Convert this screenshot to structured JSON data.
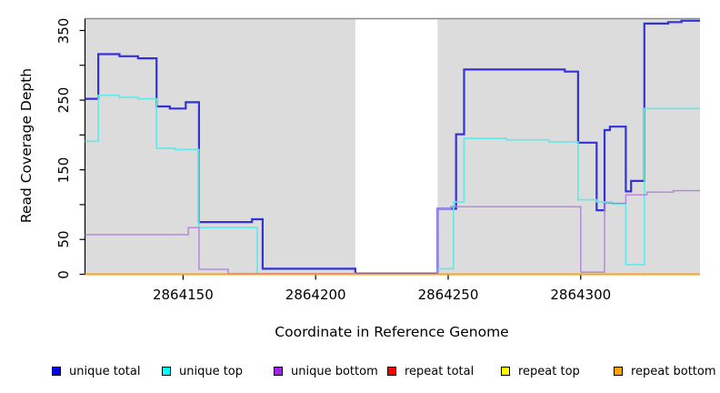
{
  "chart_data": {
    "type": "line",
    "title": "",
    "xlabel": "Coordinate in Reference Genome",
    "ylabel": "Read Coverage Depth",
    "xlim": [
      2864113,
      2864345
    ],
    "ylim": [
      0,
      367
    ],
    "grid": false,
    "legend_position": "bottom",
    "panel_color": "#dcdcdc",
    "panel_top_border_color": "#8c8c8c",
    "gap_region": {
      "from": 2864215,
      "to": 2864246,
      "color": "#ffffff"
    },
    "x_ticks": [
      {
        "value": 2864150,
        "label": "2864150"
      },
      {
        "value": 2864200,
        "label": "2864200"
      },
      {
        "value": 2864250,
        "label": "2864250"
      },
      {
        "value": 2864300,
        "label": "2864300"
      }
    ],
    "y_ticks": [
      {
        "value": 0,
        "label": "0"
      },
      {
        "value": 50,
        "label": "50"
      },
      {
        "value": 100,
        "label": ""
      },
      {
        "value": 150,
        "label": "150"
      },
      {
        "value": 200,
        "label": ""
      },
      {
        "value": 250,
        "label": "250"
      },
      {
        "value": 300,
        "label": ""
      },
      {
        "value": 350,
        "label": "350"
      }
    ],
    "series": [
      {
        "name": "unique total",
        "legend_color": "#0000ee",
        "line_color": "#3232d8",
        "line_width": 2.2,
        "steps": [
          [
            2864113,
            252
          ],
          [
            2864118,
            316
          ],
          [
            2864126,
            313
          ],
          [
            2864133,
            310
          ],
          [
            2864140,
            241
          ],
          [
            2864145,
            238
          ],
          [
            2864151,
            247
          ],
          [
            2864156,
            75
          ],
          [
            2864176,
            79
          ],
          [
            2864180,
            8
          ],
          [
            2864215,
            1
          ],
          [
            2864246,
            94
          ],
          [
            2864253,
            201
          ],
          [
            2864256,
            294
          ],
          [
            2864294,
            291
          ],
          [
            2864299,
            189
          ],
          [
            2864306,
            92
          ],
          [
            2864309,
            207
          ],
          [
            2864311,
            212
          ],
          [
            2864317,
            119
          ],
          [
            2864319,
            134
          ],
          [
            2864324,
            360
          ],
          [
            2864333,
            362
          ],
          [
            2864338,
            364
          ]
        ]
      },
      {
        "name": "unique top",
        "legend_color": "#00ffff",
        "line_color": "#63e7e7",
        "line_width": 1.6,
        "steps": [
          [
            2864113,
            191
          ],
          [
            2864118,
            257
          ],
          [
            2864126,
            254
          ],
          [
            2864133,
            252
          ],
          [
            2864140,
            181
          ],
          [
            2864147,
            179
          ],
          [
            2864156,
            67
          ],
          [
            2864178,
            1
          ],
          [
            2864215,
            0
          ],
          [
            2864246,
            8
          ],
          [
            2864252,
            104
          ],
          [
            2864256,
            195
          ],
          [
            2864272,
            193
          ],
          [
            2864288,
            190
          ],
          [
            2864299,
            107
          ],
          [
            2864306,
            104
          ],
          [
            2864312,
            101
          ],
          [
            2864317,
            14
          ],
          [
            2864324,
            238
          ]
        ]
      },
      {
        "name": "unique bottom",
        "legend_color": "#a020f0",
        "line_color": "#b183dc",
        "line_width": 1.4,
        "steps": [
          [
            2864113,
            57
          ],
          [
            2864152,
            67
          ],
          [
            2864156,
            7
          ],
          [
            2864167,
            1
          ],
          [
            2864215,
            0
          ],
          [
            2864246,
            94
          ],
          [
            2864251,
            97
          ],
          [
            2864300,
            3
          ],
          [
            2864309,
            102
          ],
          [
            2864317,
            114
          ],
          [
            2864325,
            118
          ],
          [
            2864335,
            120
          ]
        ]
      },
      {
        "name": "repeat total",
        "legend_color": "#ff0000",
        "line_color": "#e02020",
        "line_width": 1.2,
        "steps": [
          [
            2864113,
            0
          ]
        ]
      },
      {
        "name": "repeat top",
        "legend_color": "#ffff00",
        "line_color": "#f0f000",
        "line_width": 1.2,
        "steps": [
          [
            2864113,
            0
          ]
        ]
      },
      {
        "name": "repeat bottom",
        "legend_color": "#ffa500",
        "line_color": "#ff9f1a",
        "line_width": 2,
        "steps": [
          [
            2864113,
            0
          ]
        ]
      }
    ]
  }
}
